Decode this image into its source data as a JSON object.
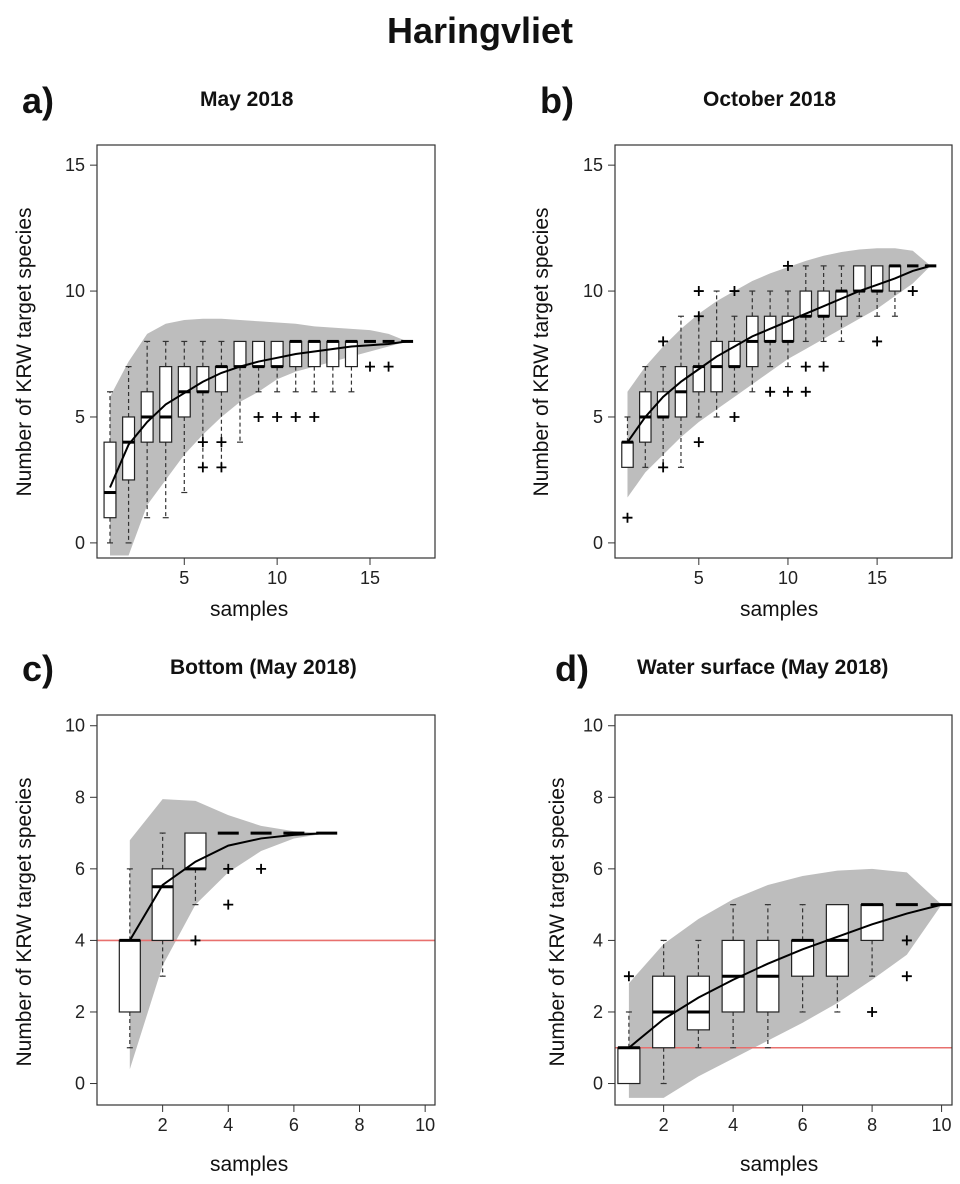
{
  "main_title": "Haringvliet",
  "colors": {
    "band": "#bdbdbd",
    "box": "#ffffff",
    "line": "#000000",
    "threshold": "#e8706e",
    "frame": "#333333"
  },
  "chart_data": [
    {
      "panel": "a)",
      "title": "May 2018",
      "type": "boxplot",
      "xlabel": "samples",
      "ylabel": "Number of KRW target species",
      "xlim": [
        0.3,
        18.5
      ],
      "ylim": [
        -0.6,
        15.8
      ],
      "xticks": [
        5,
        10,
        15
      ],
      "yticks": [
        0,
        5,
        10,
        15
      ],
      "mean_curve": {
        "x": [
          1,
          2,
          3,
          4,
          5,
          6,
          7,
          8,
          9,
          10,
          11,
          12,
          13,
          14,
          15,
          16,
          17
        ],
        "y": [
          2.2,
          3.9,
          4.8,
          5.5,
          5.95,
          6.4,
          6.75,
          7.0,
          7.2,
          7.35,
          7.5,
          7.6,
          7.7,
          7.8,
          7.85,
          7.9,
          8.0
        ]
      },
      "band": {
        "x": [
          1,
          2,
          3,
          4,
          5,
          6,
          7,
          8,
          9,
          10,
          11,
          12,
          13,
          14,
          15,
          16,
          17
        ],
        "upper": [
          5.8,
          7.2,
          8.3,
          8.7,
          8.85,
          8.9,
          8.9,
          8.85,
          8.8,
          8.75,
          8.7,
          8.6,
          8.55,
          8.5,
          8.45,
          8.3,
          8.0
        ],
        "lower": [
          -0.5,
          -0.5,
          1.5,
          2.5,
          3.5,
          4.3,
          5.0,
          5.6,
          6.0,
          6.5,
          6.8,
          7.0,
          7.2,
          7.4,
          7.6,
          7.8,
          8.0
        ]
      },
      "boxes": [
        {
          "x": 1,
          "q1": 1,
          "median": 2,
          "q3": 4,
          "lo": 0,
          "hi": 6,
          "outliers": []
        },
        {
          "x": 2,
          "q1": 2.5,
          "median": 4,
          "q3": 5,
          "lo": 0,
          "hi": 7,
          "outliers": []
        },
        {
          "x": 3,
          "q1": 4,
          "median": 5,
          "q3": 6,
          "lo": 1,
          "hi": 8,
          "outliers": []
        },
        {
          "x": 4,
          "q1": 4,
          "median": 5,
          "q3": 7,
          "lo": 1,
          "hi": 8,
          "outliers": []
        },
        {
          "x": 5,
          "q1": 5,
          "median": 6,
          "q3": 7,
          "lo": 2,
          "hi": 8,
          "outliers": []
        },
        {
          "x": 6,
          "q1": 6,
          "median": 6,
          "q3": 7,
          "lo": 3,
          "hi": 8,
          "outliers": [
            3,
            4
          ]
        },
        {
          "x": 7,
          "q1": 6,
          "median": 7,
          "q3": 7,
          "lo": 3,
          "hi": 8,
          "outliers": [
            3,
            4
          ]
        },
        {
          "x": 8,
          "q1": 7,
          "median": 7,
          "q3": 8,
          "lo": 4,
          "hi": 8,
          "outliers": []
        },
        {
          "x": 9,
          "q1": 7,
          "median": 7,
          "q3": 8,
          "lo": 6,
          "hi": 8,
          "outliers": [
            5
          ]
        },
        {
          "x": 10,
          "q1": 7,
          "median": 7,
          "q3": 8,
          "lo": 6,
          "hi": 8,
          "outliers": [
            5
          ]
        },
        {
          "x": 11,
          "q1": 7,
          "median": 8,
          "q3": 8,
          "lo": 6,
          "hi": 8,
          "outliers": [
            5
          ]
        },
        {
          "x": 12,
          "q1": 7,
          "median": 8,
          "q3": 8,
          "lo": 6,
          "hi": 8,
          "outliers": [
            5
          ]
        },
        {
          "x": 13,
          "q1": 7,
          "median": 8,
          "q3": 8,
          "lo": 6,
          "hi": 8,
          "outliers": []
        },
        {
          "x": 14,
          "q1": 7,
          "median": 8,
          "q3": 8,
          "lo": 6,
          "hi": 8,
          "outliers": []
        },
        {
          "x": 15,
          "q1": 8,
          "median": 8,
          "q3": 8,
          "lo": 8,
          "hi": 8,
          "outliers": [
            7
          ]
        },
        {
          "x": 16,
          "q1": 8,
          "median": 8,
          "q3": 8,
          "lo": 8,
          "hi": 8,
          "outliers": [
            7
          ]
        },
        {
          "x": 17,
          "q1": 8,
          "median": 8,
          "q3": 8,
          "lo": 8,
          "hi": 8,
          "outliers": []
        }
      ]
    },
    {
      "panel": "b)",
      "title": "October 2018",
      "type": "boxplot",
      "xlabel": "samples",
      "ylabel": "Number of KRW target species",
      "xlim": [
        0.3,
        19.2
      ],
      "ylim": [
        -0.6,
        15.8
      ],
      "xticks": [
        5,
        10,
        15
      ],
      "yticks": [
        0,
        5,
        10,
        15
      ],
      "mean_curve": {
        "x": [
          1,
          2,
          3,
          4,
          5,
          6,
          7,
          8,
          9,
          10,
          11,
          12,
          13,
          14,
          15,
          16,
          17,
          18
        ],
        "y": [
          4.0,
          5.0,
          5.8,
          6.4,
          6.9,
          7.4,
          7.8,
          8.2,
          8.5,
          8.8,
          9.1,
          9.4,
          9.7,
          10.0,
          10.25,
          10.5,
          10.8,
          11.0
        ]
      },
      "band": {
        "x": [
          1,
          2,
          3,
          4,
          5,
          6,
          7,
          8,
          9,
          10,
          11,
          12,
          13,
          14,
          15,
          16,
          17,
          18
        ],
        "upper": [
          6.0,
          7.0,
          7.8,
          8.5,
          9.1,
          9.6,
          10.0,
          10.4,
          10.7,
          10.95,
          11.2,
          11.4,
          11.55,
          11.65,
          11.7,
          11.7,
          11.6,
          11.0
        ],
        "lower": [
          1.8,
          2.8,
          3.5,
          4.2,
          4.8,
          5.3,
          5.8,
          6.3,
          6.8,
          7.3,
          7.7,
          8.1,
          8.5,
          8.9,
          9.3,
          9.8,
          10.3,
          11.0
        ]
      },
      "boxes": [
        {
          "x": 1,
          "q1": 3,
          "median": 4,
          "q3": 4,
          "lo": 3,
          "hi": 5,
          "outliers": [
            1
          ]
        },
        {
          "x": 2,
          "q1": 4,
          "median": 5,
          "q3": 6,
          "lo": 3,
          "hi": 7,
          "outliers": []
        },
        {
          "x": 3,
          "q1": 5,
          "median": 5,
          "q3": 6,
          "lo": 3,
          "hi": 7,
          "outliers": [
            3,
            8
          ]
        },
        {
          "x": 4,
          "q1": 5,
          "median": 6,
          "q3": 7,
          "lo": 3,
          "hi": 9,
          "outliers": []
        },
        {
          "x": 5,
          "q1": 6,
          "median": 7,
          "q3": 7,
          "lo": 5,
          "hi": 9,
          "outliers": [
            4,
            9,
            10
          ]
        },
        {
          "x": 6,
          "q1": 6,
          "median": 7,
          "q3": 8,
          "lo": 5,
          "hi": 10,
          "outliers": []
        },
        {
          "x": 7,
          "q1": 7,
          "median": 7,
          "q3": 8,
          "lo": 6,
          "hi": 9,
          "outliers": [
            5,
            10
          ]
        },
        {
          "x": 8,
          "q1": 7,
          "median": 8,
          "q3": 9,
          "lo": 6,
          "hi": 10,
          "outliers": []
        },
        {
          "x": 9,
          "q1": 8,
          "median": 8,
          "q3": 9,
          "lo": 7,
          "hi": 10,
          "outliers": [
            6
          ]
        },
        {
          "x": 10,
          "q1": 8,
          "median": 8,
          "q3": 9,
          "lo": 7,
          "hi": 10,
          "outliers": [
            6,
            11
          ]
        },
        {
          "x": 11,
          "q1": 9,
          "median": 9,
          "q3": 10,
          "lo": 8,
          "hi": 11,
          "outliers": [
            6,
            7
          ]
        },
        {
          "x": 12,
          "q1": 9,
          "median": 9,
          "q3": 10,
          "lo": 8,
          "hi": 11,
          "outliers": [
            7
          ]
        },
        {
          "x": 13,
          "q1": 9,
          "median": 10,
          "q3": 10,
          "lo": 8,
          "hi": 11,
          "outliers": []
        },
        {
          "x": 14,
          "q1": 10,
          "median": 10,
          "q3": 11,
          "lo": 9,
          "hi": 11,
          "outliers": []
        },
        {
          "x": 15,
          "q1": 10,
          "median": 10,
          "q3": 11,
          "lo": 9,
          "hi": 11,
          "outliers": [
            8
          ]
        },
        {
          "x": 16,
          "q1": 10,
          "median": 11,
          "q3": 11,
          "lo": 9,
          "hi": 11,
          "outliers": []
        },
        {
          "x": 17,
          "q1": 11,
          "median": 11,
          "q3": 11,
          "lo": 11,
          "hi": 11,
          "outliers": [
            10
          ]
        },
        {
          "x": 18,
          "q1": 11,
          "median": 11,
          "q3": 11,
          "lo": 11,
          "hi": 11,
          "outliers": []
        }
      ]
    },
    {
      "panel": "c)",
      "title": "Bottom (May 2018)",
      "type": "boxplot",
      "xlabel": "samples",
      "ylabel": "Number of KRW target species",
      "xlim": [
        0.0,
        10.3
      ],
      "ylim": [
        -0.6,
        10.3
      ],
      "xticks": [
        2,
        4,
        6,
        8,
        10
      ],
      "yticks": [
        0,
        2,
        4,
        6,
        8,
        10
      ],
      "threshold": 4,
      "mean_curve": {
        "x": [
          1,
          2,
          3,
          4,
          5,
          6,
          7
        ],
        "y": [
          4.0,
          5.55,
          6.2,
          6.65,
          6.85,
          6.95,
          7.0
        ]
      },
      "band": {
        "x": [
          1,
          2,
          3,
          4,
          5,
          6,
          7
        ],
        "upper": [
          6.8,
          7.95,
          7.9,
          7.5,
          7.2,
          7.05,
          7.0
        ],
        "lower": [
          0.4,
          3.3,
          5.0,
          5.9,
          6.5,
          6.85,
          7.0
        ]
      },
      "boxes": [
        {
          "x": 1,
          "q1": 2,
          "median": 4,
          "q3": 4,
          "lo": 1,
          "hi": 6,
          "outliers": []
        },
        {
          "x": 2,
          "q1": 4,
          "median": 5.5,
          "q3": 6,
          "lo": 3,
          "hi": 7,
          "outliers": []
        },
        {
          "x": 3,
          "q1": 6,
          "median": 6,
          "q3": 7,
          "lo": 5,
          "hi": 7,
          "outliers": [
            4
          ]
        },
        {
          "x": 4,
          "q1": 7,
          "median": 7,
          "q3": 7,
          "lo": 7,
          "hi": 7,
          "outliers": [
            5,
            6
          ]
        },
        {
          "x": 5,
          "q1": 7,
          "median": 7,
          "q3": 7,
          "lo": 7,
          "hi": 7,
          "outliers": [
            6
          ]
        },
        {
          "x": 6,
          "q1": 7,
          "median": 7,
          "q3": 7,
          "lo": 7,
          "hi": 7,
          "outliers": []
        },
        {
          "x": 7,
          "q1": 7,
          "median": 7,
          "q3": 7,
          "lo": 7,
          "hi": 7,
          "outliers": []
        }
      ]
    },
    {
      "panel": "d)",
      "title": "Water surface (May 2018)",
      "type": "boxplot",
      "xlabel": "samples",
      "ylabel": "Number of KRW target species",
      "xlim": [
        0.6,
        10.3
      ],
      "ylim": [
        -0.6,
        10.3
      ],
      "xticks": [
        2,
        4,
        6,
        8,
        10
      ],
      "yticks": [
        0,
        2,
        4,
        6,
        8,
        10
      ],
      "threshold": 1,
      "mean_curve": {
        "x": [
          1,
          2,
          3,
          4,
          5,
          6,
          7,
          8,
          9,
          10
        ],
        "y": [
          1.0,
          1.8,
          2.4,
          2.9,
          3.35,
          3.75,
          4.1,
          4.45,
          4.75,
          5.0
        ]
      },
      "band": {
        "x": [
          1,
          2,
          3,
          4,
          5,
          6,
          7,
          8,
          9,
          10
        ],
        "upper": [
          2.8,
          3.9,
          4.6,
          5.15,
          5.55,
          5.8,
          5.95,
          6.0,
          5.9,
          5.0
        ],
        "lower": [
          -0.4,
          -0.4,
          0.2,
          0.7,
          1.2,
          1.7,
          2.25,
          2.9,
          3.6,
          5.0
        ]
      },
      "boxes": [
        {
          "x": 1,
          "q1": 0,
          "median": 1,
          "q3": 1,
          "lo": 0,
          "hi": 2,
          "outliers": [
            3
          ]
        },
        {
          "x": 2,
          "q1": 1,
          "median": 2,
          "q3": 3,
          "lo": 0,
          "hi": 4,
          "outliers": []
        },
        {
          "x": 3,
          "q1": 1.5,
          "median": 2,
          "q3": 3,
          "lo": 1,
          "hi": 4,
          "outliers": []
        },
        {
          "x": 4,
          "q1": 2,
          "median": 3,
          "q3": 4,
          "lo": 1,
          "hi": 5,
          "outliers": []
        },
        {
          "x": 5,
          "q1": 2,
          "median": 3,
          "q3": 4,
          "lo": 1,
          "hi": 5,
          "outliers": []
        },
        {
          "x": 6,
          "q1": 3,
          "median": 4,
          "q3": 4,
          "lo": 2,
          "hi": 5,
          "outliers": []
        },
        {
          "x": 7,
          "q1": 3,
          "median": 4,
          "q3": 5,
          "lo": 2,
          "hi": 5,
          "outliers": []
        },
        {
          "x": 8,
          "q1": 4,
          "median": 5,
          "q3": 5,
          "lo": 3,
          "hi": 5,
          "outliers": [
            2
          ]
        },
        {
          "x": 9,
          "q1": 5,
          "median": 5,
          "q3": 5,
          "lo": 5,
          "hi": 5,
          "outliers": [
            3,
            4
          ]
        },
        {
          "x": 10,
          "q1": 5,
          "median": 5,
          "q3": 5,
          "lo": 5,
          "hi": 5,
          "outliers": []
        }
      ]
    }
  ]
}
